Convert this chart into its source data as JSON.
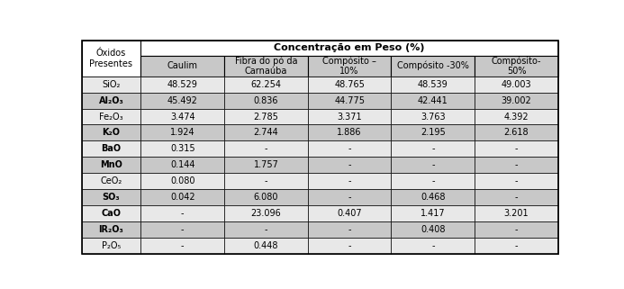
{
  "title": "Concentração em Peso (%)",
  "col_header_left": "Óxidos\nPresentes",
  "col_headers": [
    "Caulim",
    "Fibra do pó da\nCarnaúba",
    "Compósito –\n10%",
    "Compósito -30%",
    "Compósito-\n50%"
  ],
  "row_labels": [
    "SiO₂",
    "Al₂O₃",
    "Fe₂O₃",
    "K₂O",
    "BaO",
    "MnO",
    "CeO₂",
    "SO₃",
    "CaO",
    "IR₂O₃",
    "P₂O₅"
  ],
  "row_labels_bold": [
    false,
    true,
    false,
    true,
    true,
    true,
    false,
    true,
    true,
    true,
    false
  ],
  "data": [
    [
      "48.529",
      "62.254",
      "48.765",
      "48.539",
      "49.003"
    ],
    [
      "45.492",
      "0.836",
      "44.775",
      "42.441",
      "39.002"
    ],
    [
      "3.474",
      "2.785",
      "3.371",
      "3.763",
      "4.392"
    ],
    [
      "1.924",
      "2.744",
      "1.886",
      "2.195",
      "2.618"
    ],
    [
      "0.315",
      "-",
      "-",
      "-",
      "-"
    ],
    [
      "0.144",
      "1.757",
      "-",
      "-",
      "-"
    ],
    [
      "0.080",
      "-",
      "-",
      "-",
      "-"
    ],
    [
      "0.042",
      "6.080",
      "-",
      "0.468",
      "-"
    ],
    [
      "-",
      "23.096",
      "0.407",
      "1.417",
      "3.201"
    ],
    [
      "-",
      "-",
      "-",
      "0.408",
      "-"
    ],
    [
      "-",
      "0.448",
      "-",
      "-",
      "-"
    ]
  ],
  "row_shaded": [
    false,
    true,
    false,
    true,
    false,
    true,
    false,
    true,
    false,
    true,
    false
  ],
  "shaded_color": "#c8c8c8",
  "white_color": "#e8e8e8",
  "header_col_color": "#c8c8c8",
  "header_top_color": "#ffffff",
  "left_col_color": "#c8c8c8",
  "title_fontsize": 8,
  "header_fontsize": 7,
  "data_fontsize": 7,
  "label_fontsize": 7
}
